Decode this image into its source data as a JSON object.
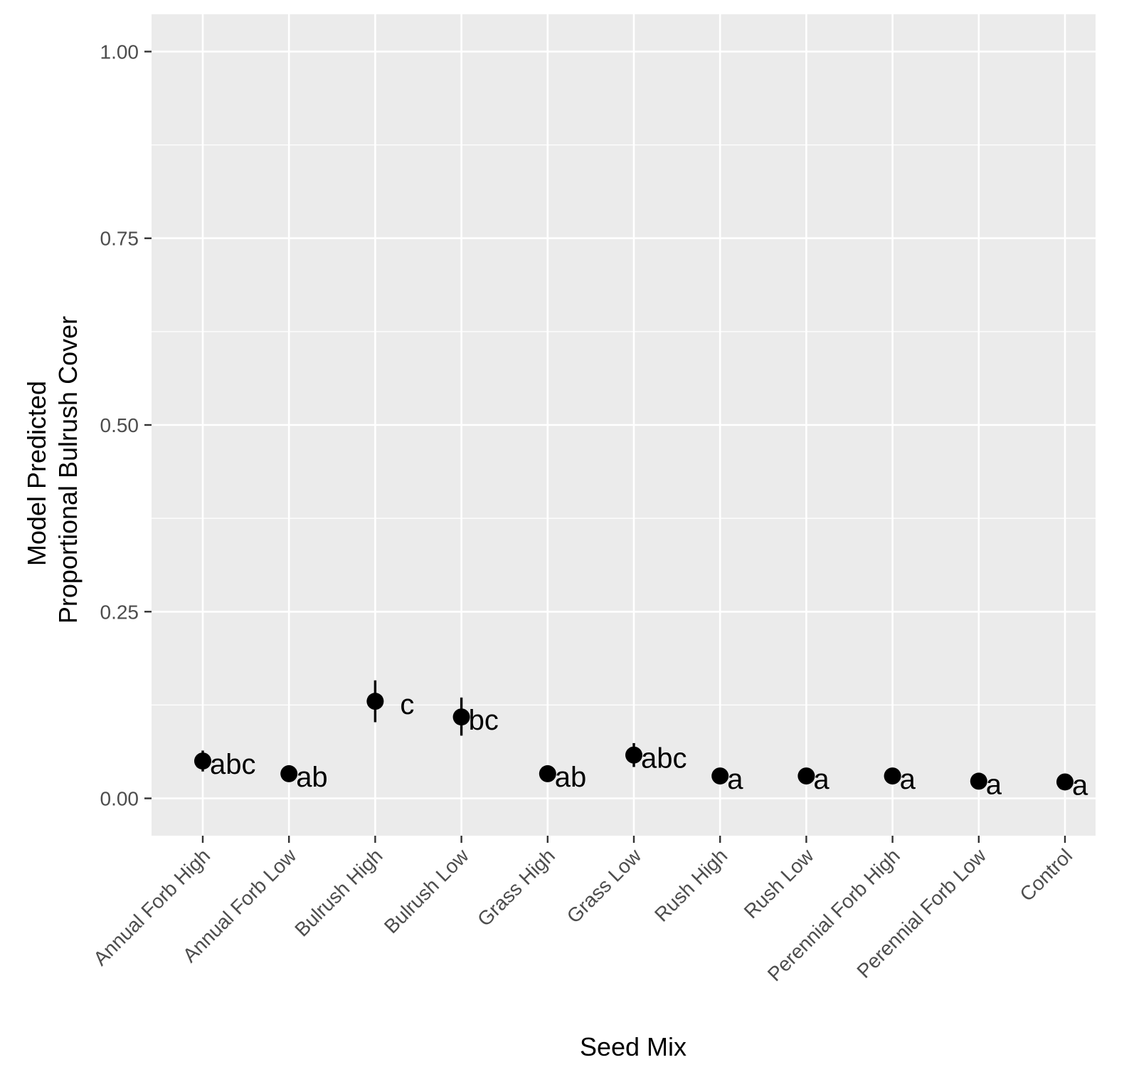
{
  "chart_data": {
    "type": "scatter",
    "xlabel": "Seed Mix",
    "ylabel_lines": [
      "Model Predicted",
      "Proportional Bulrush Cover"
    ],
    "ylim": [
      -0.05,
      1.05
    ],
    "y_ticks": [
      0.0,
      0.25,
      0.5,
      0.75,
      1.0
    ],
    "y_tick_labels": [
      "0.00",
      "0.25",
      "0.50",
      "0.75",
      "1.00"
    ],
    "grid": true,
    "legend": "none",
    "categories": [
      "Annual Forb High",
      "Annual Forb Low",
      "Bulrush High",
      "Bulrush Low",
      "Grass High",
      "Grass Low",
      "Rush High",
      "Rush Low",
      "Perennial Forb High",
      "Perennial Forb Low",
      "Control"
    ],
    "values": [
      0.05,
      0.033,
      0.13,
      0.109,
      0.033,
      0.058,
      0.03,
      0.03,
      0.03,
      0.023,
      0.022
    ],
    "lower": [
      0.036,
      0.026,
      0.102,
      0.084,
      0.026,
      0.042,
      0.023,
      0.023,
      0.023,
      0.017,
      0.016
    ],
    "upper": [
      0.064,
      0.041,
      0.158,
      0.135,
      0.041,
      0.074,
      0.037,
      0.037,
      0.037,
      0.03,
      0.029
    ],
    "group_letters": [
      "abc",
      "ab",
      "c",
      "bc",
      "ab",
      "abc",
      "a",
      "a",
      "a",
      "a",
      "a"
    ]
  },
  "colors": {
    "panel_background": "#ebebeb",
    "grid": "#ffffff",
    "points": "#000000",
    "tick_text": "#4d4d4d",
    "tick_marks": "#333333"
  }
}
